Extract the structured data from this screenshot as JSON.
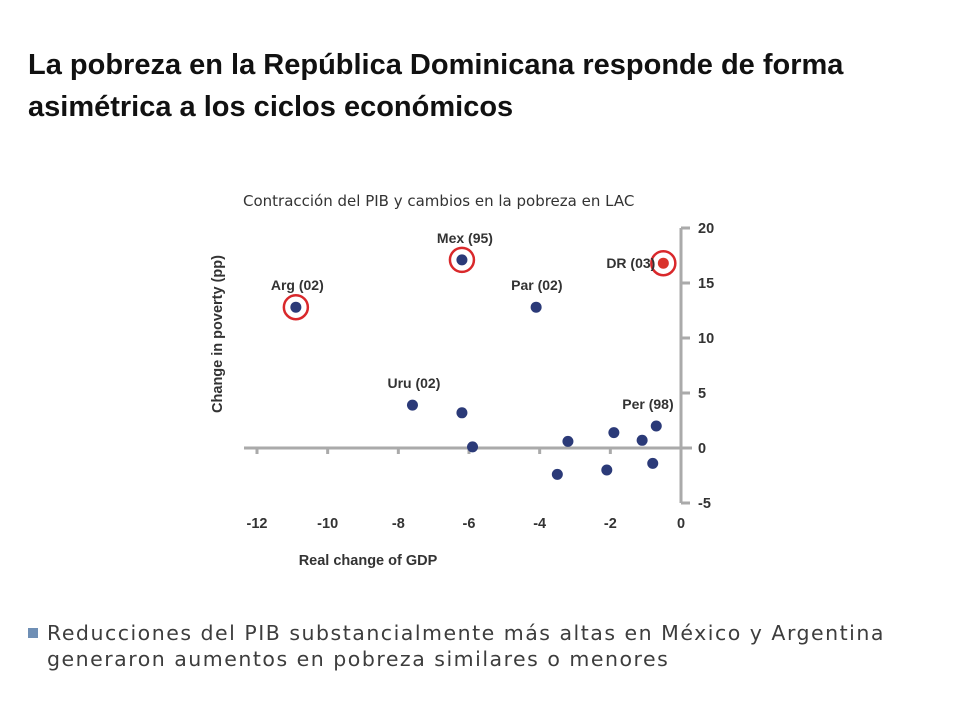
{
  "slide": {
    "title": "La pobreza en la República Dominicana responde de forma asimétrica a los ciclos económicos",
    "bullet": "Reducciones del PIB substancialmente más altas en México y Argentina generaron aumentos en pobreza similares o menores"
  },
  "chart_data": {
    "type": "scatter",
    "subtitle": "Contracción del PIB y cambios en la pobreza en LAC",
    "xlabel": "Real change of GDP",
    "ylabel": "Change in poverty (pp)",
    "xlim": [
      -12,
      0
    ],
    "ylim": [
      -5,
      20
    ],
    "xticks": [
      "-12",
      "-10",
      "-8",
      "-6",
      "-4",
      "-2",
      "0"
    ],
    "yticks": [
      "20",
      "15",
      "10",
      "5",
      "0",
      "-5"
    ],
    "colors": {
      "point": "#2b3a78",
      "highlight_point": "#d9332b",
      "highlight_ring": "#d9282b",
      "axis": "#aaaaaa"
    },
    "points": [
      {
        "x": -10.9,
        "y": 12.8,
        "label": "Arg (02)",
        "circled": true
      },
      {
        "x": -6.2,
        "y": 17.1,
        "label": "Mex (95)",
        "circled": true
      },
      {
        "x": -0.5,
        "y": 16.8,
        "label": "DR (03)",
        "circled": true,
        "highlight": true
      },
      {
        "x": -4.1,
        "y": 12.8,
        "label": "Par (02)"
      },
      {
        "x": -7.6,
        "y": 3.9,
        "label": "Uru (02)"
      },
      {
        "x": -6.2,
        "y": 3.2
      },
      {
        "x": -5.9,
        "y": 0.1
      },
      {
        "x": -3.2,
        "y": 0.6
      },
      {
        "x": -3.5,
        "y": -2.4
      },
      {
        "x": -2.1,
        "y": -2.0
      },
      {
        "x": -1.9,
        "y": 1.4
      },
      {
        "x": -1.1,
        "y": 0.7
      },
      {
        "x": -0.7,
        "y": 2.0,
        "label": "Per (98)"
      },
      {
        "x": -0.8,
        "y": -1.4
      }
    ]
  }
}
